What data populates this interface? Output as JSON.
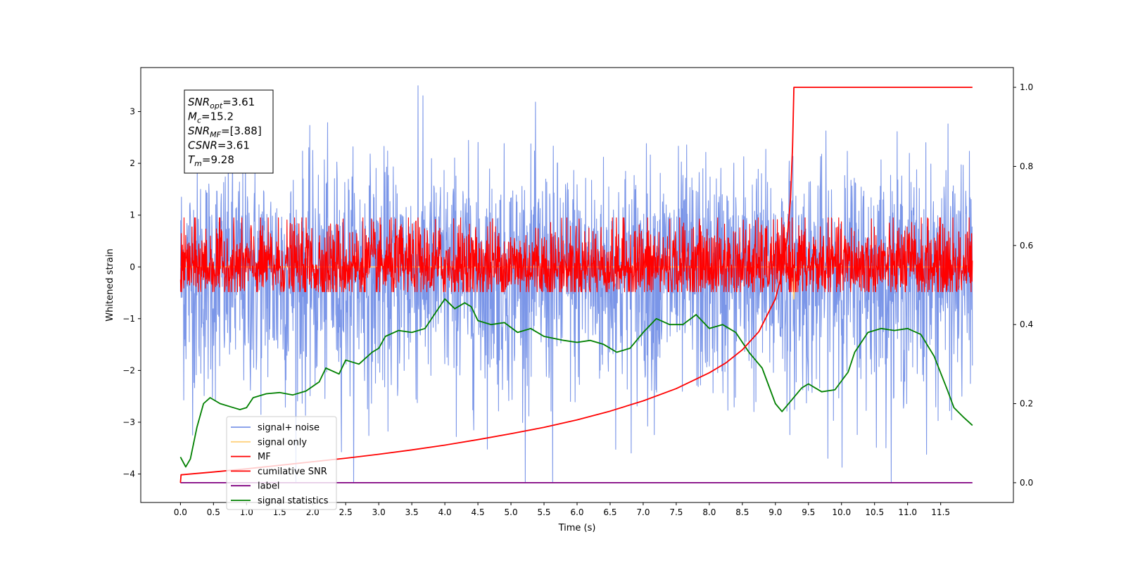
{
  "chart_data": {
    "type": "line",
    "xlabel": "Time (s)",
    "ylabel": "Whitened strain",
    "xlim": [
      -0.6,
      12.6
    ],
    "ylim": [
      -4.55,
      3.85
    ],
    "ylim_right": [
      -0.05,
      1.05
    ],
    "x_ticks": [
      0.0,
      0.5,
      1.0,
      1.5,
      2.0,
      2.5,
      3.0,
      3.5,
      4.0,
      4.5,
      5.0,
      5.5,
      6.0,
      6.5,
      7.0,
      7.5,
      8.0,
      8.5,
      9.0,
      9.5,
      10.0,
      10.5,
      11.0,
      11.5
    ],
    "x_tick_labels": [
      "0.0",
      "0.5",
      "1.0",
      "1.5",
      "2.0",
      "2.5",
      "3.0",
      "3.5",
      "4.0",
      "4.5",
      "5.0",
      "5.5",
      "6.0",
      "6.5",
      "7.0",
      "7.5",
      "8.0",
      "8.5",
      "9.0",
      "9.5",
      "10.0",
      "10.5",
      "11.0",
      "11.5"
    ],
    "y_ticks": [
      -4,
      -3,
      -2,
      -1,
      0,
      1,
      2,
      3
    ],
    "y_tick_labels": [
      "−4",
      "−3",
      "−2",
      "−1",
      "0",
      "1",
      "2",
      "3"
    ],
    "y_right_ticks": [
      0.0,
      0.2,
      0.4,
      0.6,
      0.8,
      1.0
    ],
    "y_right_tick_labels": [
      "0.0",
      "0.2",
      "0.4",
      "0.6",
      "0.8",
      "1.0"
    ],
    "grid": false,
    "legend_placement": "lower-left",
    "legend": [
      {
        "label": "signal+ noise",
        "color": "#7b96e8"
      },
      {
        "label": "signal only",
        "color": "#ffd27f"
      },
      {
        "label": "MF",
        "color": "#ff0000"
      },
      {
        "label": "cumilative SNR",
        "color": "#ff0000"
      },
      {
        "label": "label",
        "color": "#800080"
      },
      {
        "label": "signal statistics",
        "color": "#008000"
      }
    ],
    "annotation": {
      "lines": [
        {
          "sym": "SNR",
          "sub": "opt",
          "value": "=3.61"
        },
        {
          "sym": "M",
          "sub": "c",
          "value": "=15.2"
        },
        {
          "sym": "SNR",
          "sub": "MF",
          "value": "=[3.88]"
        },
        {
          "sym": "CSNR",
          "sub": "",
          "value": "=3.61"
        },
        {
          "sym": "T",
          "sub": "m",
          "value": "=9.28"
        }
      ]
    },
    "series": [
      {
        "name": "signal+ noise",
        "axis": "left",
        "color": "#7b96e8",
        "style": "noise",
        "x_range": [
          0.0,
          11.98
        ],
        "baseline": -0.1,
        "spread_up": 1.3,
        "spread_down": 1.5,
        "max": 3.5,
        "min": -4.15
      },
      {
        "name": "signal only",
        "axis": "left",
        "color": "#ffd27f",
        "points": [
          [
            0.0,
            0.0
          ],
          [
            9.2,
            0.0
          ],
          [
            9.26,
            -0.3
          ],
          [
            9.28,
            -0.62
          ],
          [
            9.3,
            0.0
          ],
          [
            11.98,
            0.0
          ]
        ]
      },
      {
        "name": "MF",
        "axis": "left",
        "color": "#ff0000",
        "style": "noise",
        "x_range": [
          0.0,
          11.98
        ],
        "baseline": 0.0,
        "spread_up": 0.55,
        "spread_down": 0.42,
        "max": 0.95,
        "min": -0.48
      },
      {
        "name": "cumilative SNR",
        "axis": "right",
        "color": "#ff0000",
        "points": [
          [
            0.0,
            0.0
          ],
          [
            0.01,
            0.02
          ],
          [
            0.5,
            0.027
          ],
          [
            1.0,
            0.035
          ],
          [
            1.5,
            0.044
          ],
          [
            2.0,
            0.053
          ],
          [
            2.5,
            0.062
          ],
          [
            3.0,
            0.072
          ],
          [
            3.5,
            0.083
          ],
          [
            4.0,
            0.095
          ],
          [
            4.5,
            0.109
          ],
          [
            5.0,
            0.124
          ],
          [
            5.5,
            0.14
          ],
          [
            6.0,
            0.159
          ],
          [
            6.5,
            0.181
          ],
          [
            7.0,
            0.207
          ],
          [
            7.5,
            0.238
          ],
          [
            8.0,
            0.278
          ],
          [
            8.25,
            0.303
          ],
          [
            8.5,
            0.336
          ],
          [
            8.75,
            0.382
          ],
          [
            9.0,
            0.465
          ],
          [
            9.1,
            0.53
          ],
          [
            9.18,
            0.62
          ],
          [
            9.23,
            0.72
          ],
          [
            9.26,
            0.85
          ],
          [
            9.28,
            1.0
          ],
          [
            11.98,
            1.0
          ]
        ]
      },
      {
        "name": "label",
        "axis": "right",
        "color": "#800080",
        "points": [
          [
            0.0,
            0.0
          ],
          [
            11.98,
            0.0
          ]
        ]
      },
      {
        "name": "signal statistics",
        "axis": "right",
        "color": "#008000",
        "points": [
          [
            0.0,
            0.065
          ],
          [
            0.08,
            0.04
          ],
          [
            0.15,
            0.06
          ],
          [
            0.25,
            0.14
          ],
          [
            0.35,
            0.2
          ],
          [
            0.45,
            0.215
          ],
          [
            0.6,
            0.2
          ],
          [
            0.8,
            0.19
          ],
          [
            0.9,
            0.185
          ],
          [
            1.0,
            0.19
          ],
          [
            1.1,
            0.215
          ],
          [
            1.3,
            0.225
          ],
          [
            1.5,
            0.228
          ],
          [
            1.7,
            0.222
          ],
          [
            1.9,
            0.232
          ],
          [
            2.1,
            0.255
          ],
          [
            2.2,
            0.29
          ],
          [
            2.4,
            0.275
          ],
          [
            2.5,
            0.31
          ],
          [
            2.7,
            0.3
          ],
          [
            2.9,
            0.33
          ],
          [
            3.0,
            0.34
          ],
          [
            3.1,
            0.37
          ],
          [
            3.3,
            0.385
          ],
          [
            3.5,
            0.38
          ],
          [
            3.7,
            0.39
          ],
          [
            3.8,
            0.415
          ],
          [
            3.9,
            0.44
          ],
          [
            4.0,
            0.465
          ],
          [
            4.15,
            0.44
          ],
          [
            4.3,
            0.455
          ],
          [
            4.4,
            0.445
          ],
          [
            4.5,
            0.41
          ],
          [
            4.7,
            0.4
          ],
          [
            4.9,
            0.405
          ],
          [
            5.1,
            0.38
          ],
          [
            5.3,
            0.39
          ],
          [
            5.5,
            0.37
          ],
          [
            5.8,
            0.36
          ],
          [
            6.0,
            0.355
          ],
          [
            6.2,
            0.36
          ],
          [
            6.4,
            0.35
          ],
          [
            6.6,
            0.33
          ],
          [
            6.8,
            0.34
          ],
          [
            7.0,
            0.38
          ],
          [
            7.2,
            0.415
          ],
          [
            7.4,
            0.4
          ],
          [
            7.6,
            0.4
          ],
          [
            7.8,
            0.425
          ],
          [
            8.0,
            0.39
          ],
          [
            8.2,
            0.4
          ],
          [
            8.4,
            0.38
          ],
          [
            8.6,
            0.33
          ],
          [
            8.8,
            0.29
          ],
          [
            9.0,
            0.2
          ],
          [
            9.1,
            0.18
          ],
          [
            9.3,
            0.22
          ],
          [
            9.4,
            0.24
          ],
          [
            9.5,
            0.25
          ],
          [
            9.7,
            0.23
          ],
          [
            9.9,
            0.235
          ],
          [
            10.1,
            0.28
          ],
          [
            10.2,
            0.33
          ],
          [
            10.4,
            0.38
          ],
          [
            10.6,
            0.39
          ],
          [
            10.8,
            0.385
          ],
          [
            11.0,
            0.39
          ],
          [
            11.2,
            0.375
          ],
          [
            11.4,
            0.32
          ],
          [
            11.6,
            0.235
          ],
          [
            11.7,
            0.19
          ],
          [
            11.85,
            0.165
          ],
          [
            11.98,
            0.145
          ]
        ]
      }
    ]
  }
}
